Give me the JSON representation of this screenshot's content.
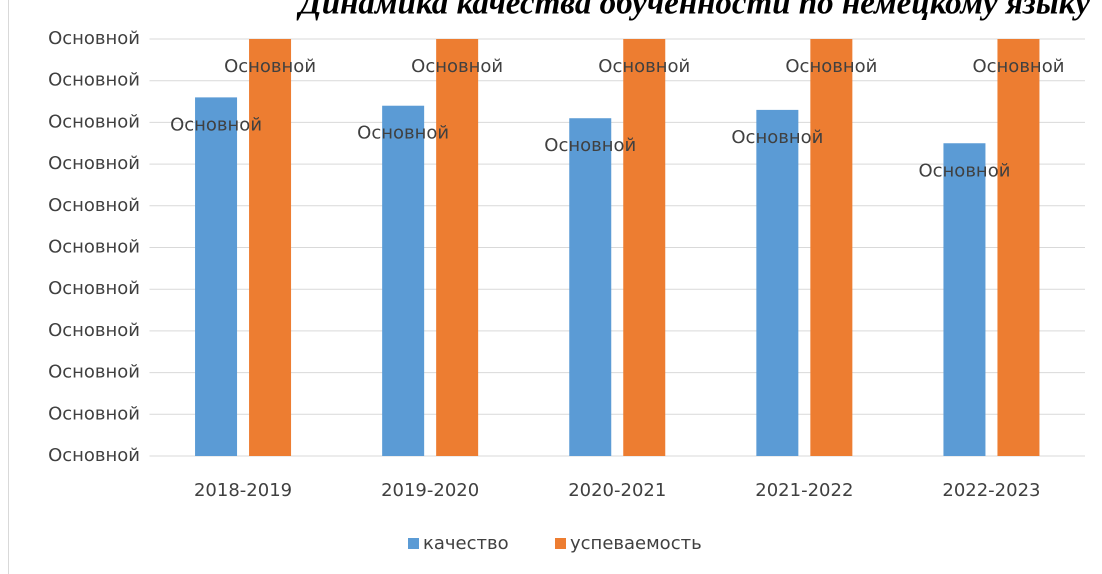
{
  "chart_data": {
    "type": "bar",
    "title": "Динамика качества обученности по немецкому языку",
    "categories": [
      "2018-2019",
      "2019-2020",
      "2020-2021",
      "2021-2022",
      "2022-2023"
    ],
    "series": [
      {
        "name": "качество",
        "color": "#5b9bd5",
        "values": [
          86,
          84,
          81,
          83,
          75
        ],
        "value_labels": [
          "Основной",
          "Основной",
          "Основной",
          "Основной",
          "Основной"
        ]
      },
      {
        "name": "успеваемость",
        "color": "#ed7d31",
        "values": [
          100,
          100,
          100,
          100,
          100
        ],
        "value_labels": [
          "Основной",
          "Основной",
          "Основной",
          "Основной",
          "Основной"
        ]
      }
    ],
    "ylim": [
      0,
      100
    ],
    "yticks": [
      {
        "value": 0,
        "label": "Основной"
      },
      {
        "value": 10,
        "label": "Основной"
      },
      {
        "value": 20,
        "label": "Основной"
      },
      {
        "value": 30,
        "label": "Основной"
      },
      {
        "value": 40,
        "label": "Основной"
      },
      {
        "value": 50,
        "label": "Основной"
      },
      {
        "value": 60,
        "label": "Основной"
      },
      {
        "value": 70,
        "label": "Основной"
      },
      {
        "value": 80,
        "label": "Основной"
      },
      {
        "value": 90,
        "label": "Основной"
      },
      {
        "value": 100,
        "label": "Основной"
      }
    ],
    "grid": true,
    "legend": "bottom"
  }
}
